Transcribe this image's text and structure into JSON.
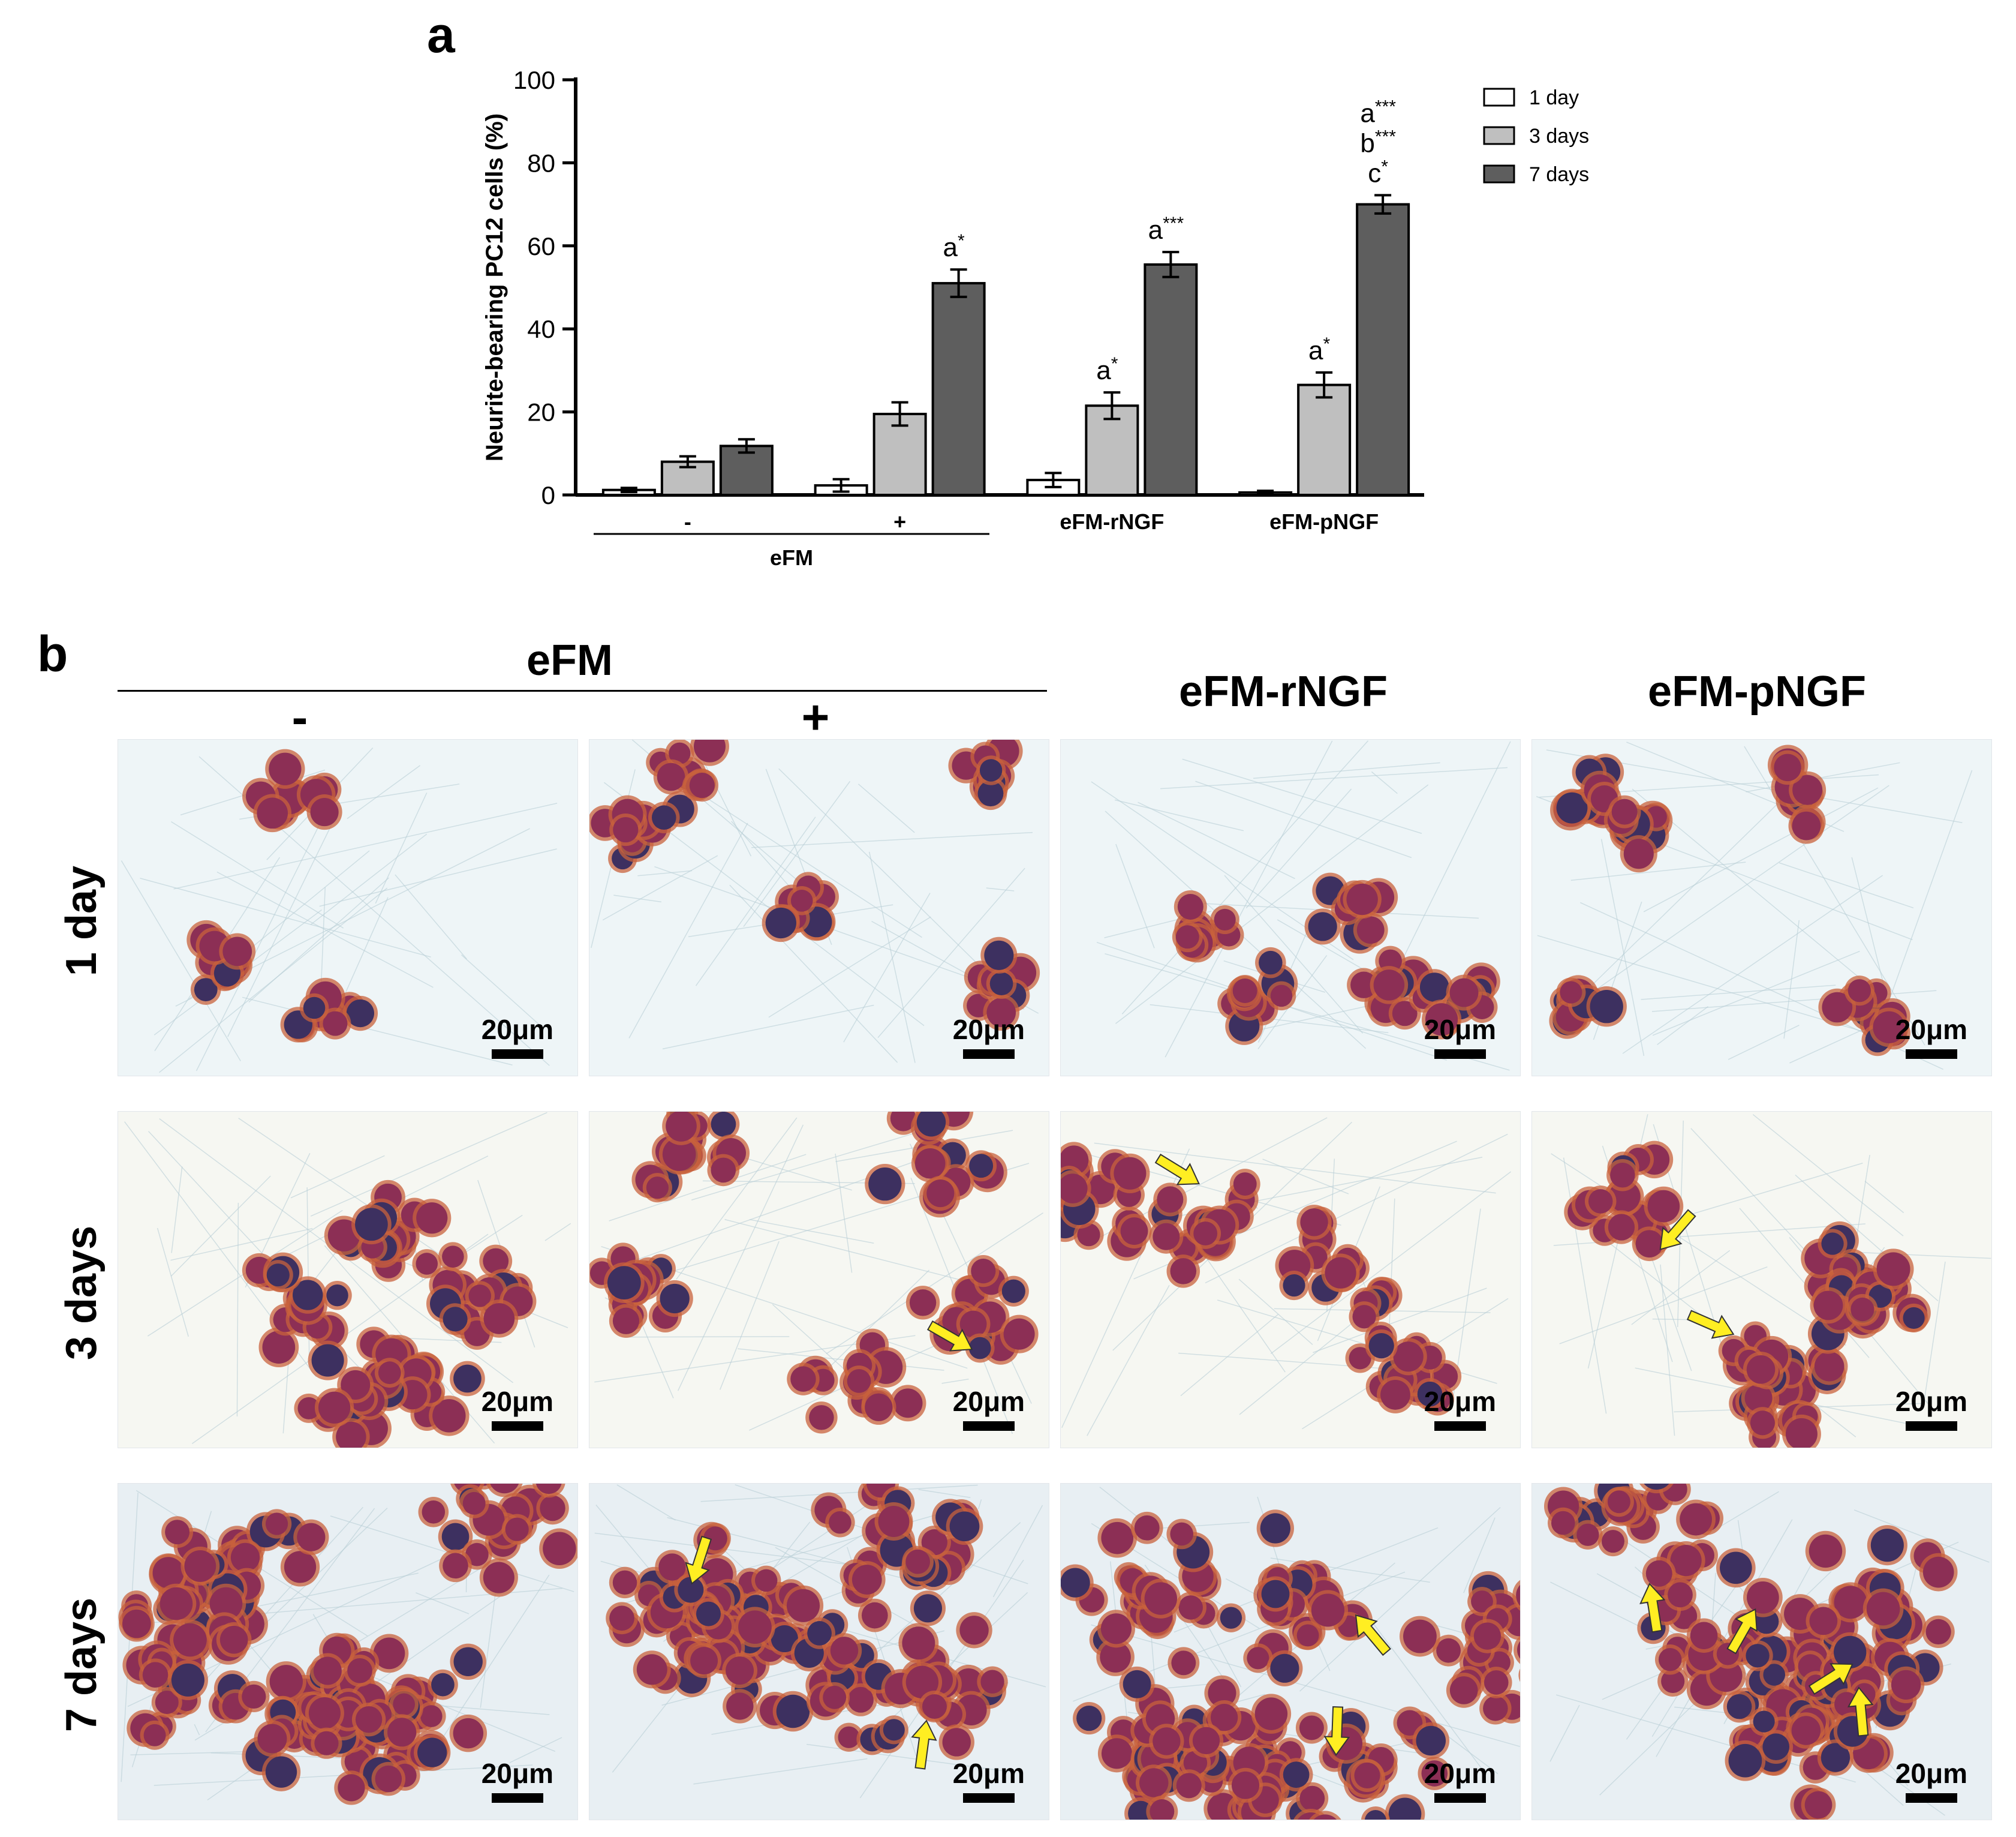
{
  "panel_a": {
    "letter": "a",
    "chart_data": {
      "type": "bar",
      "title": "",
      "xlabel": "",
      "ylabel": "Neurite-bearing PC12 cells (%)",
      "ylim": [
        0,
        100
      ],
      "yticks": [
        "0",
        "20",
        "40",
        "60",
        "80",
        "100"
      ],
      "categories": [
        "-",
        "+",
        "eFM-rNGF",
        "eFM-pNGF"
      ],
      "group_label": "eFM",
      "legend_position": "top-right",
      "series": [
        {
          "name": "1 day",
          "color": "#ffffff",
          "values": [
            1.2,
            2.3,
            3.6,
            0.6
          ],
          "errors": [
            0.5,
            1.5,
            1.7,
            0.4
          ],
          "annotations": [
            "",
            "",
            "",
            ""
          ]
        },
        {
          "name": "3 days",
          "color": "#bfbfbf",
          "values": [
            8.0,
            19.5,
            21.5,
            26.5
          ],
          "errors": [
            1.3,
            2.8,
            3.2,
            3.0
          ],
          "annotations": [
            "",
            "",
            "a*",
            "a*"
          ]
        },
        {
          "name": "7 days",
          "color": "#5e5e5e",
          "values": [
            11.8,
            51.0,
            55.5,
            70.0
          ],
          "errors": [
            1.6,
            3.3,
            3.0,
            2.2
          ],
          "annotations": [
            "",
            "a*",
            "a***",
            "a***|b***|c*"
          ]
        }
      ]
    }
  },
  "panel_b": {
    "letter": "b",
    "group_label": "eFM",
    "sub_labels": [
      "-",
      "+"
    ],
    "column_headers": [
      "eFM-rNGF",
      "eFM-pNGF"
    ],
    "row_labels": [
      "1 day",
      "3 days",
      "7 days"
    ],
    "scale_bar_label": "20μm",
    "colors": {
      "cell": "#8c2f55",
      "cell_dark": "#3d3060",
      "cytoplasm": "#c8613c",
      "arrow": "#ffee22",
      "background_blue": "#cfe7ec"
    }
  }
}
